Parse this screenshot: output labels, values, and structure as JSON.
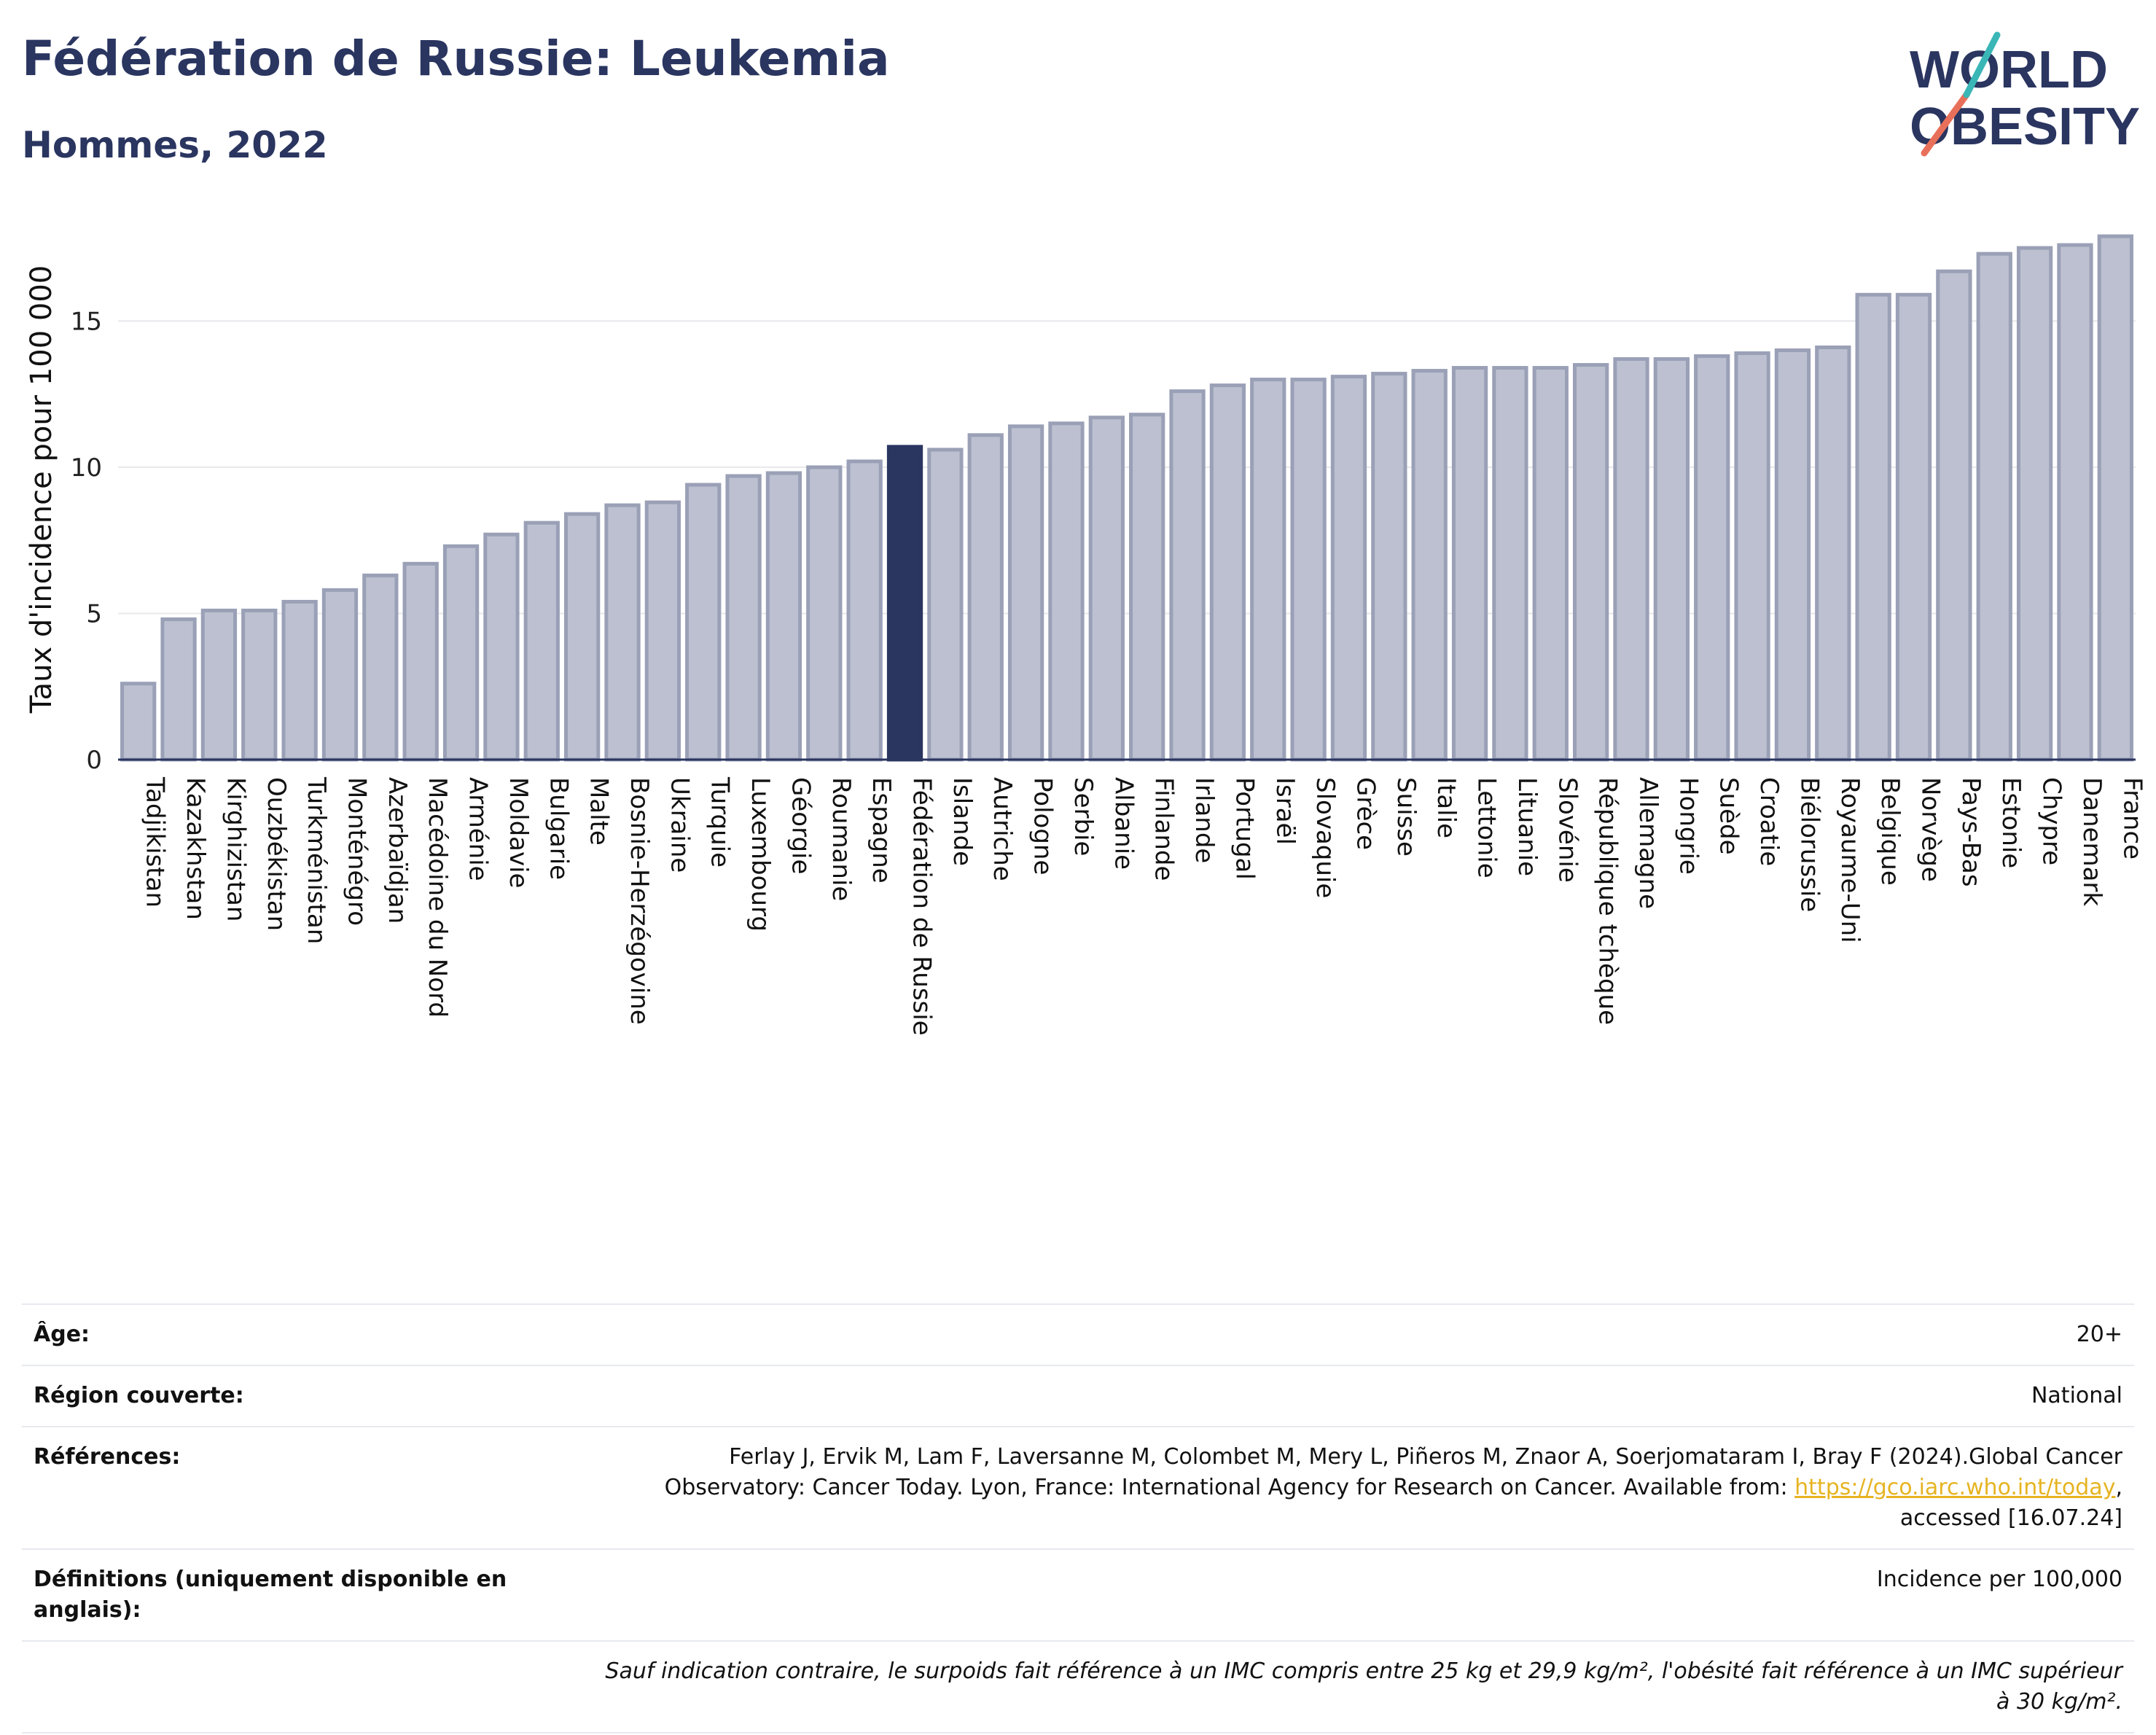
{
  "header": {
    "title": "Fédération de Russie: Leukemia",
    "subtitle": "Hommes, 2022"
  },
  "logo": {
    "line1": "WORLD",
    "line2": "OBESITY"
  },
  "colors": {
    "bar": "#bcc0d0",
    "bar_border": "#9aa0b6",
    "highlight": "#2a3560",
    "gridline": "#e8e8ec"
  },
  "chart_data": {
    "type": "bar",
    "ylabel": "Taux d'incidence pour 100 000",
    "ylim": [
      0,
      18.5
    ],
    "yticks": [
      0,
      5,
      10,
      15
    ],
    "highlight": "Fédération de Russie",
    "categories": [
      "Tadjikistan",
      "Kazakhstan",
      "Kirghizistan",
      "Ouzbékistan",
      "Turkménistan",
      "Monténégro",
      "Azerbaïdjan",
      "Macédoine du Nord",
      "Arménie",
      "Moldavie",
      "Bulgarie",
      "Malte",
      "Bosnie-Herzégovine",
      "Ukraine",
      "Turquie",
      "Luxembourg",
      "Géorgie",
      "Roumanie",
      "Espagne",
      "Fédération de Russie",
      "Islande",
      "Autriche",
      "Pologne",
      "Serbie",
      "Albanie",
      "Finlande",
      "Irlande",
      "Portugal",
      "Israël",
      "Slovaquie",
      "Grèce",
      "Suisse",
      "Italie",
      "Lettonie",
      "Lituanie",
      "Slovénie",
      "République tchèque",
      "Allemagne",
      "Hongrie",
      "Suède",
      "Croatie",
      "Biélorussie",
      "Royaume-Uni",
      "Belgique",
      "Norvège",
      "Pays-Bas",
      "Estonie",
      "Chypre",
      "Danemark",
      "France"
    ],
    "values": [
      2.6,
      4.8,
      5.1,
      5.1,
      5.4,
      5.8,
      6.3,
      6.7,
      7.3,
      7.7,
      8.1,
      8.4,
      8.7,
      8.8,
      9.4,
      9.7,
      9.8,
      10.0,
      10.2,
      10.7,
      10.6,
      11.1,
      11.4,
      11.5,
      11.7,
      11.8,
      12.6,
      12.8,
      13.0,
      13.0,
      13.1,
      13.2,
      13.3,
      13.4,
      13.4,
      13.4,
      13.5,
      13.7,
      13.7,
      13.8,
      13.9,
      14.0,
      14.1,
      15.9,
      15.9,
      16.7,
      17.3,
      17.5,
      17.6,
      17.9
    ]
  },
  "info": {
    "age_label": "Âge:",
    "age_value": "20+",
    "region_label": "Région couverte:",
    "region_value": "National",
    "refs_label": "Références:",
    "refs_text1": "Ferlay J, Ervik M, Lam F, Laversanne M, Colombet M, Mery L, Piñeros M, Znaor A, Soerjomataram I, Bray F (2024).Global Cancer Observatory: Cancer Today. Lyon, France: International Agency for Research on Cancer. Available from: ",
    "refs_link": "https://gco.iarc.who.int/today",
    "refs_text2": ", accessed [16.07.24]",
    "defs_label": "Définitions (uniquement disponible en anglais):",
    "defs_value": "Incidence per 100,000",
    "note": "Sauf indication contraire, le surpoids fait référence à un IMC compris entre 25 kg et 29,9 kg/m², l'obésité fait référence à un IMC supérieur à 30 kg/m²."
  }
}
